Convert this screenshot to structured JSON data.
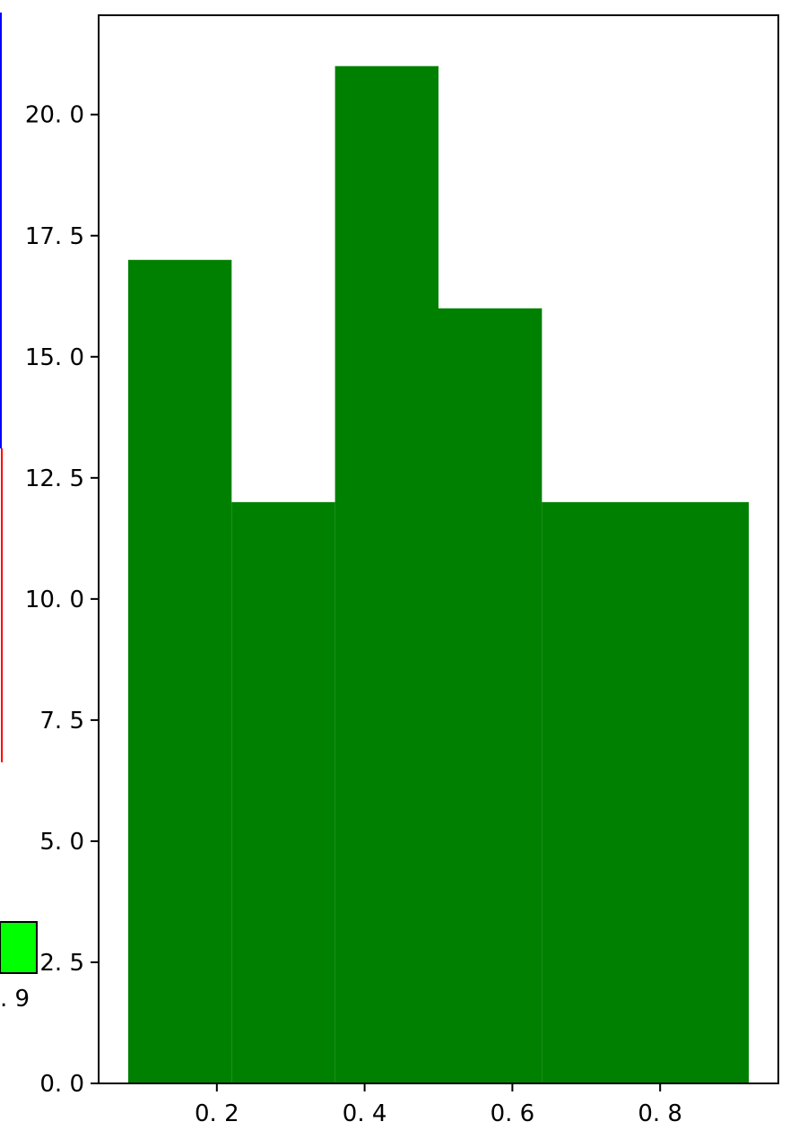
{
  "chart_data": {
    "type": "bar",
    "title": "",
    "xlabel": "",
    "ylabel": "",
    "bins": [
      {
        "x0": 0.08,
        "x1": 0.22,
        "value": 17
      },
      {
        "x0": 0.22,
        "x1": 0.36,
        "value": 12
      },
      {
        "x0": 0.36,
        "x1": 0.5,
        "value": 21
      },
      {
        "x0": 0.5,
        "x1": 0.64,
        "value": 16
      },
      {
        "x0": 0.64,
        "x1": 0.92,
        "value": 12
      }
    ],
    "xticks": [
      {
        "value": 0.2,
        "label": "0. 2"
      },
      {
        "value": 0.4,
        "label": "0. 4"
      },
      {
        "value": 0.6,
        "label": "0. 6"
      },
      {
        "value": 0.8,
        "label": "0. 8"
      }
    ],
    "yticks": [
      {
        "value": 0,
        "label": "0. 0"
      },
      {
        "value": 2.5,
        "label": "2. 5"
      },
      {
        "value": 5,
        "label": "5. 0"
      },
      {
        "value": 7.5,
        "label": "7. 5"
      },
      {
        "value": 10,
        "label": "10. 0"
      },
      {
        "value": 12.5,
        "label": "12. 5"
      },
      {
        "value": 15,
        "label": "15. 0"
      },
      {
        "value": 17.5,
        "label": "17. 5"
      },
      {
        "value": 20,
        "label": "20. 0"
      }
    ],
    "xlim": [
      0.04,
      0.96
    ],
    "ylim": [
      0,
      22.05
    ],
    "grid": false,
    "bar_color": "#008000",
    "neighbor_fragments": {
      "tick_label": ". 9",
      "patch_color": "#00ff00",
      "left_line_colors": [
        "#0000ff",
        "#ff0000"
      ]
    }
  }
}
